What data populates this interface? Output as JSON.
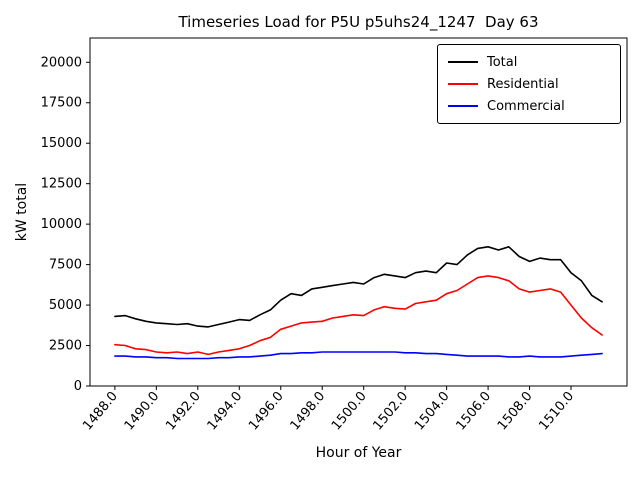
{
  "figure": {
    "title": "Timeseries Load for P5U p5uhs24_1247  Day 63",
    "xlabel": "Hour of Year",
    "ylabel": "kW total"
  },
  "legend": {
    "position": "upper right",
    "entries": [
      {
        "label": "Total",
        "color": "#000000"
      },
      {
        "label": "Residential",
        "color": "#ff0000"
      },
      {
        "label": "Commercial",
        "color": "#0000ff"
      }
    ]
  },
  "chart_data": {
    "type": "line",
    "title": "Timeseries Load for P5U p5uhs24_1247  Day 63",
    "xlabel": "Hour of Year",
    "ylabel": "kW total",
    "grid": false,
    "legend_position": "upper right",
    "xlim": [
      1486.8,
      1512.7
    ],
    "ylim": [
      0,
      21500
    ],
    "xticks": [
      1488.0,
      1490.0,
      1492.0,
      1494.0,
      1496.0,
      1498.0,
      1500.0,
      1502.0,
      1504.0,
      1506.0,
      1508.0,
      1510.0
    ],
    "yticks": [
      0,
      2500,
      5000,
      7500,
      10000,
      12500,
      15000,
      17500,
      20000
    ],
    "x": [
      1488.0,
      1488.5,
      1489.0,
      1489.5,
      1490.0,
      1490.5,
      1491.0,
      1491.5,
      1492.0,
      1492.5,
      1493.0,
      1493.5,
      1494.0,
      1494.5,
      1495.0,
      1495.5,
      1496.0,
      1496.5,
      1497.0,
      1497.5,
      1498.0,
      1498.5,
      1499.0,
      1499.5,
      1500.0,
      1500.5,
      1501.0,
      1501.5,
      1502.0,
      1502.5,
      1503.0,
      1503.5,
      1504.0,
      1504.5,
      1505.0,
      1505.5,
      1506.0,
      1506.5,
      1507.0,
      1507.5,
      1508.0,
      1508.5,
      1509.0,
      1509.5,
      1510.0,
      1510.5,
      1511.0,
      1511.5
    ],
    "series": [
      {
        "name": "Total",
        "color": "#000000",
        "values": [
          4300,
          4350,
          4150,
          4000,
          3900,
          3850,
          3800,
          3850,
          3700,
          3650,
          3800,
          3950,
          4100,
          4050,
          4400,
          4700,
          5300,
          5700,
          5600,
          6000,
          6100,
          6200,
          6300,
          6400,
          6300,
          6700,
          6900,
          6800,
          6700,
          7000,
          7100,
          7000,
          7600,
          7500,
          8100,
          8500,
          8600,
          8400,
          8600,
          8000,
          7700,
          7900,
          7800,
          7800,
          7000,
          6500,
          5600,
          5200
        ]
      },
      {
        "name": "Residential",
        "color": "#ff0000",
        "values": [
          2550,
          2500,
          2300,
          2250,
          2100,
          2050,
          2100,
          2000,
          2100,
          1950,
          2100,
          2200,
          2300,
          2500,
          2800,
          3000,
          3500,
          3700,
          3900,
          3950,
          4000,
          4200,
          4300,
          4400,
          4350,
          4700,
          4900,
          4800,
          4750,
          5100,
          5200,
          5300,
          5700,
          5900,
          6300,
          6700,
          6800,
          6700,
          6500,
          6000,
          5800,
          5900,
          6000,
          5800,
          5000,
          4200,
          3600,
          3150
        ]
      },
      {
        "name": "Commercial",
        "color": "#0000ff",
        "values": [
          1850,
          1850,
          1800,
          1800,
          1750,
          1750,
          1700,
          1700,
          1700,
          1700,
          1750,
          1750,
          1800,
          1800,
          1850,
          1900,
          2000,
          2000,
          2050,
          2050,
          2100,
          2100,
          2100,
          2100,
          2100,
          2100,
          2100,
          2100,
          2050,
          2050,
          2000,
          2000,
          1950,
          1900,
          1850,
          1850,
          1850,
          1850,
          1800,
          1800,
          1850,
          1800,
          1800,
          1800,
          1850,
          1900,
          1950,
          2000
        ]
      }
    ]
  }
}
